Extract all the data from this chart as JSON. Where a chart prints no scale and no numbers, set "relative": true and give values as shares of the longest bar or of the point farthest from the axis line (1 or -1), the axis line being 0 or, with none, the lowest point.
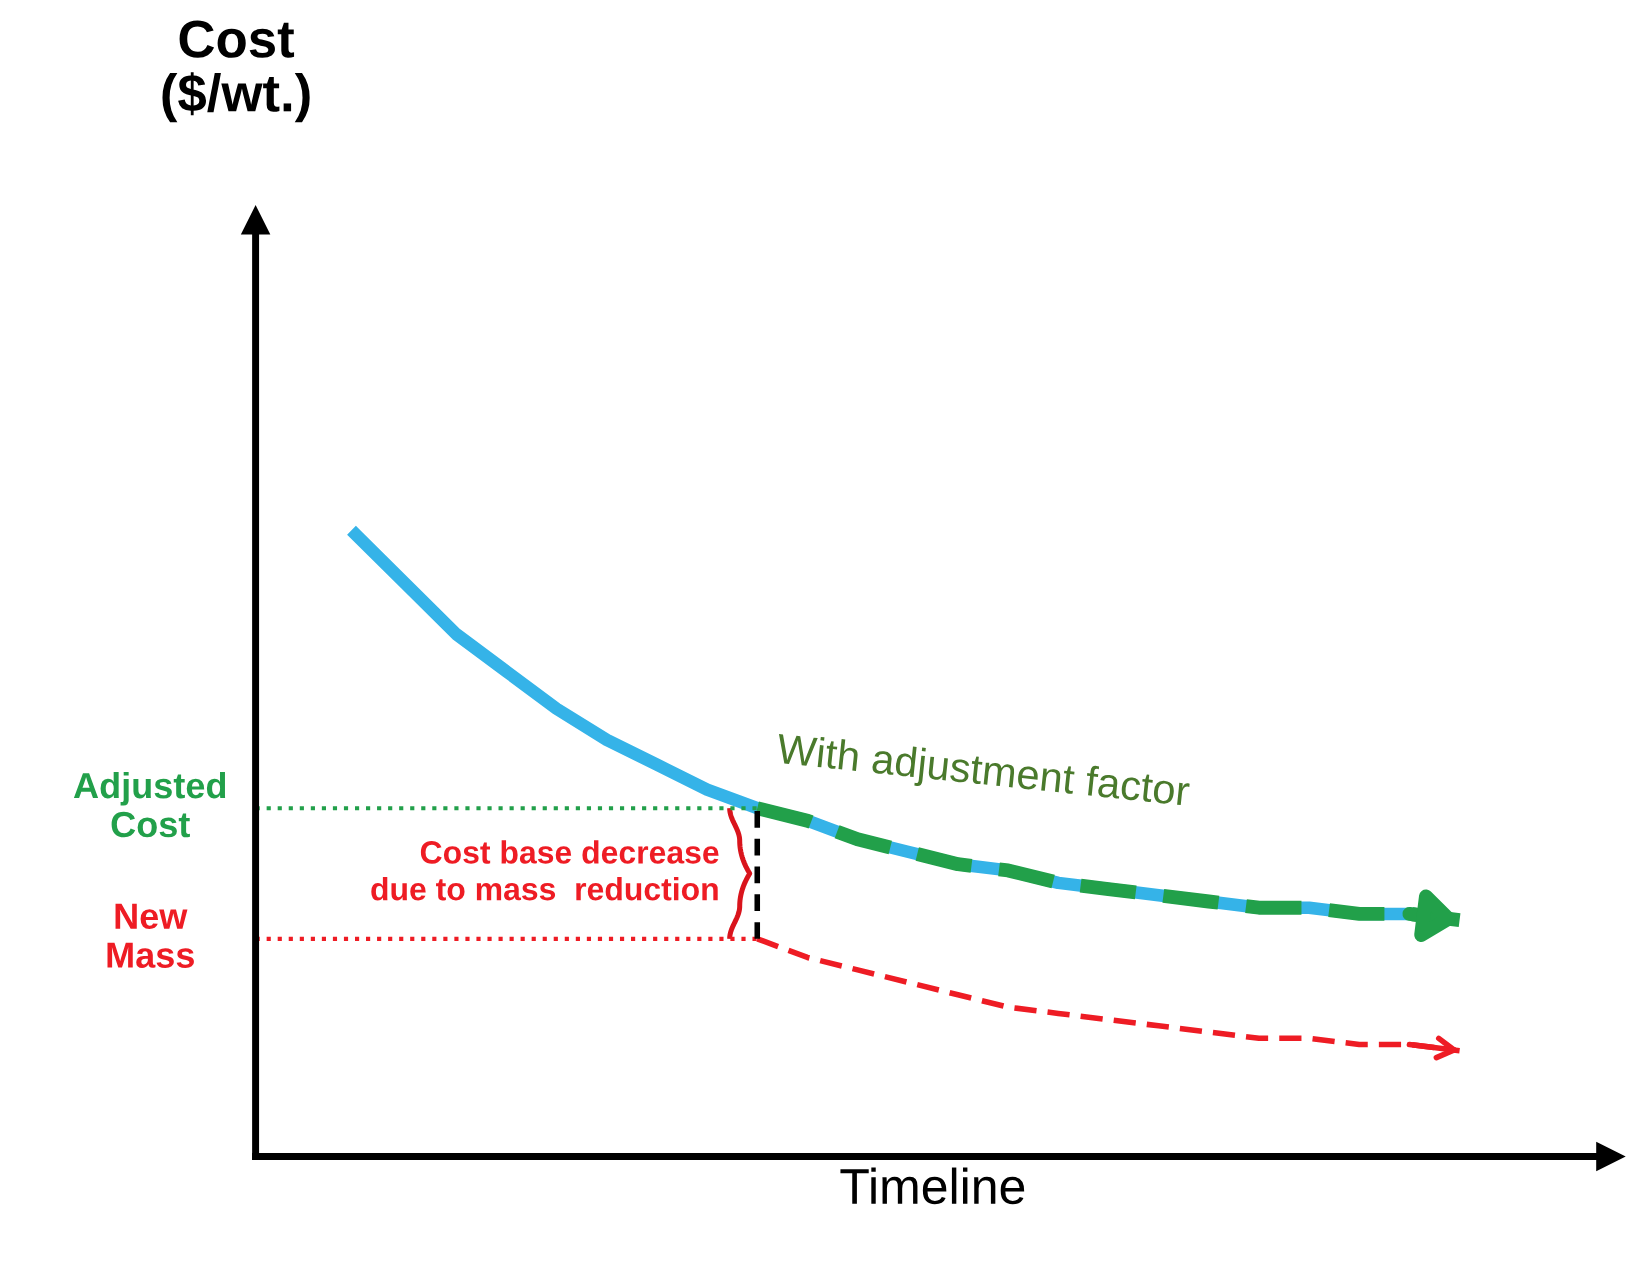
{
  "chart_data": {
    "type": "line",
    "relative": true,
    "xlabel": "Timeline",
    "categories": [
      null,
      null,
      null,
      null,
      null,
      null,
      null,
      null,
      null,
      null,
      null,
      null,
      null,
      null,
      null,
      null,
      null,
      null,
      null,
      null,
      null,
      null,
      null,
      null,
      null,
      null,
      null,
      null
    ],
    "series": [
      {
        "color": "#35b3e8",
        "line_style": "solid",
        "values": [
          null,
          null,
          1,
          0.92,
          0.84,
          0.78,
          0.72,
          0.67,
          0.63,
          0.59,
          0.56,
          0.54,
          0.51,
          0.49,
          0.47,
          0.46,
          0.44,
          0.43,
          0.42,
          0.41,
          0.4,
          0.4,
          0.39,
          0.39,
          null,
          null,
          null,
          null
        ]
      },
      {
        "name": "With adjustment factor",
        "color": "#22a04a",
        "line_style": "dashed",
        "values": [
          null,
          null,
          null,
          null,
          null,
          null,
          null,
          null,
          null,
          null,
          0.56,
          0.54,
          0.51,
          0.49,
          0.47,
          0.46,
          0.44,
          0.43,
          0.42,
          0.41,
          0.4,
          0.4,
          0.39,
          0.39,
          0.38,
          null,
          null,
          null
        ]
      },
      {
        "color": "#ee1c24",
        "line_style": "dashed",
        "values": [
          null,
          null,
          null,
          null,
          null,
          null,
          null,
          null,
          null,
          null,
          0.35,
          0.32,
          0.3,
          0.28,
          0.26,
          0.24,
          0.23,
          0.22,
          0.21,
          0.2,
          0.19,
          0.19,
          0.18,
          0.18,
          0.17,
          null,
          null,
          null
        ]
      }
    ],
    "ref_lines": [
      {
        "axis": "y",
        "value": 0.56,
        "label": "Adjusted\nCost",
        "color": "#22a04a",
        "line_style": "dotted"
      },
      {
        "axis": "y",
        "value": 0.35,
        "label": "New\nMass",
        "color": "#ee1c24",
        "line_style": "dotted"
      }
    ],
    "annotations": [
      "Cost\n($/wt.)",
      "Cost base decrease\ndue to mass  reduction"
    ]
  }
}
